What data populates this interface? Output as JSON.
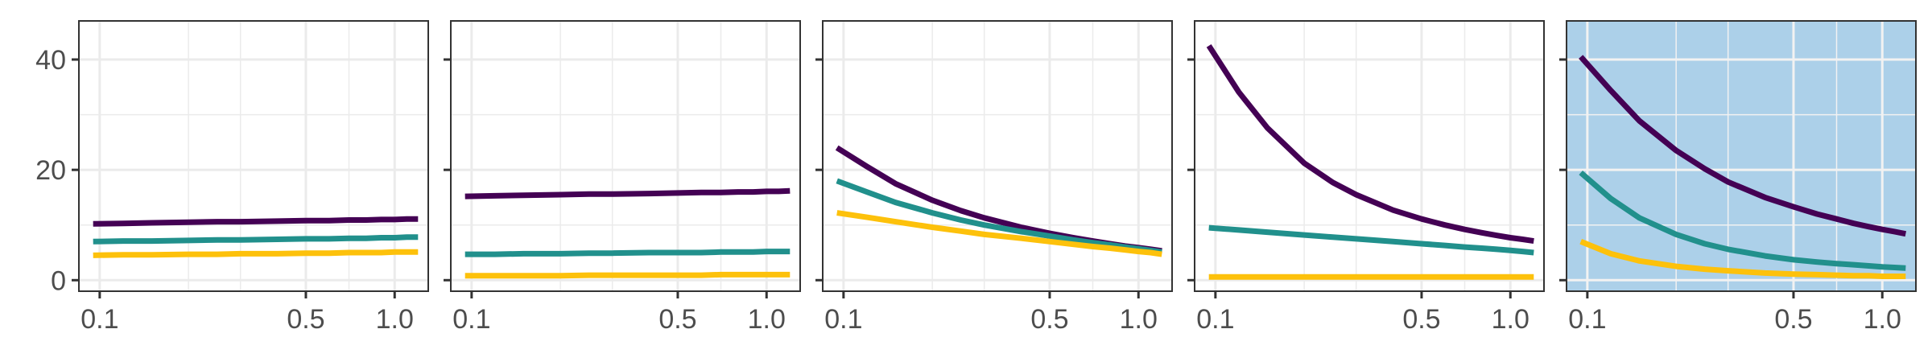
{
  "chart_data": {
    "type": "line",
    "layout": "facets-1x5",
    "x_scale": "log",
    "xlim": [
      0.085,
      1.3
    ],
    "ylim": [
      -2,
      47
    ],
    "x_ticks": [
      0.1,
      0.5,
      1.0
    ],
    "x_tick_labels": [
      "0.1",
      "0.5",
      "1.0"
    ],
    "x_minor_breaks": [
      0.2,
      0.3,
      0.7
    ],
    "y_ticks": [
      0,
      20,
      40
    ],
    "y_tick_labels": [
      "0",
      "20",
      "40"
    ],
    "y_minor_breaks": [
      10,
      30
    ],
    "grid": true,
    "legend": "none",
    "x": [
      0.095,
      0.12,
      0.15,
      0.2,
      0.25,
      0.3,
      0.4,
      0.5,
      0.6,
      0.7,
      0.8,
      0.9,
      1.0,
      1.1,
      1.2
    ],
    "series_colors": [
      "#440154",
      "#21908C",
      "#FDC10B"
    ],
    "panels": [
      {
        "background": "#ffffff",
        "grid_color": "#ebebeb",
        "series": [
          {
            "values": [
              10.2,
              10.3,
              10.4,
              10.5,
              10.6,
              10.6,
              10.7,
              10.8,
              10.8,
              10.9,
              10.9,
              11.0,
              11.0,
              11.1,
              11.1
            ]
          },
          {
            "values": [
              7.0,
              7.1,
              7.1,
              7.2,
              7.3,
              7.3,
              7.4,
              7.5,
              7.5,
              7.6,
              7.6,
              7.7,
              7.7,
              7.8,
              7.8
            ]
          },
          {
            "values": [
              4.5,
              4.6,
              4.6,
              4.7,
              4.7,
              4.8,
              4.8,
              4.9,
              4.9,
              5.0,
              5.0,
              5.0,
              5.1,
              5.1,
              5.1
            ]
          }
        ]
      },
      {
        "background": "#ffffff",
        "grid_color": "#ebebeb",
        "series": [
          {
            "values": [
              15.2,
              15.3,
              15.4,
              15.5,
              15.6,
              15.6,
              15.7,
              15.8,
              15.9,
              15.9,
              16.0,
              16.0,
              16.1,
              16.1,
              16.2
            ]
          },
          {
            "values": [
              4.7,
              4.7,
              4.8,
              4.8,
              4.9,
              4.9,
              5.0,
              5.0,
              5.0,
              5.1,
              5.1,
              5.1,
              5.2,
              5.2,
              5.2
            ]
          },
          {
            "values": [
              0.8,
              0.8,
              0.8,
              0.8,
              0.9,
              0.9,
              0.9,
              0.9,
              0.9,
              1.0,
              1.0,
              1.0,
              1.0,
              1.0,
              1.0
            ]
          }
        ]
      },
      {
        "background": "#ffffff",
        "grid_color": "#ebebeb",
        "series": [
          {
            "values": [
              24.0,
              20.6,
              17.5,
              14.5,
              12.6,
              11.3,
              9.6,
              8.5,
              7.7,
              7.1,
              6.6,
              6.2,
              5.9,
              5.6,
              5.3
            ]
          },
          {
            "values": [
              18.0,
              16.0,
              14.1,
              12.2,
              10.9,
              10.0,
              8.8,
              8.0,
              7.3,
              6.8,
              6.4,
              6.0,
              5.7,
              5.4,
              5.1
            ]
          },
          {
            "values": [
              12.2,
              11.4,
              10.6,
              9.6,
              8.9,
              8.3,
              7.6,
              7.0,
              6.5,
              6.1,
              5.8,
              5.5,
              5.2,
              5.0,
              4.7
            ]
          }
        ]
      },
      {
        "background": "#ffffff",
        "grid_color": "#ebebeb",
        "series": [
          {
            "values": [
              42.5,
              34.1,
              27.6,
              21.2,
              17.7,
              15.5,
              12.7,
              11.1,
              10.0,
              9.2,
              8.6,
              8.1,
              7.7,
              7.4,
              7.1
            ]
          },
          {
            "values": [
              9.5,
              9.1,
              8.7,
              8.2,
              7.8,
              7.5,
              7.0,
              6.6,
              6.3,
              6.0,
              5.8,
              5.6,
              5.4,
              5.2,
              5.0
            ]
          },
          {
            "values": [
              0.6,
              0.6,
              0.6,
              0.6,
              0.6,
              0.6,
              0.6,
              0.6,
              0.6,
              0.6,
              0.6,
              0.6,
              0.6,
              0.6,
              0.6
            ]
          }
        ]
      },
      {
        "background": "#acd0e9",
        "grid_color": "#f2f2f2",
        "series": [
          {
            "values": [
              40.5,
              34.4,
              28.9,
              23.5,
              20.2,
              17.8,
              15.0,
              13.3,
              12.0,
              11.1,
              10.3,
              9.7,
              9.2,
              8.8,
              8.4
            ]
          },
          {
            "values": [
              19.5,
              14.8,
              11.3,
              8.3,
              6.6,
              5.6,
              4.4,
              3.7,
              3.3,
              3.0,
              2.8,
              2.6,
              2.4,
              2.3,
              2.2
            ]
          },
          {
            "values": [
              7.0,
              4.8,
              3.5,
              2.5,
              2.0,
              1.7,
              1.3,
              1.1,
              1.0,
              0.9,
              0.8,
              0.8,
              0.7,
              0.7,
              0.7
            ]
          }
        ]
      }
    ]
  }
}
